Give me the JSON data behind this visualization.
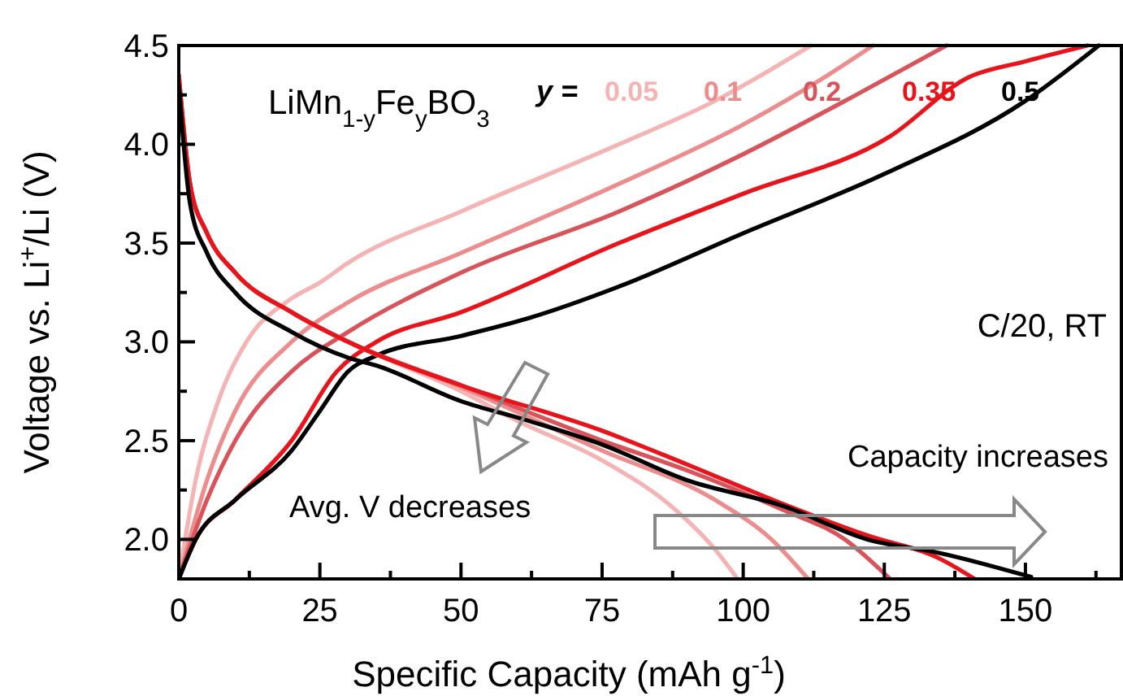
{
  "chart_data": {
    "type": "line",
    "xlabel": "Specific Capacity (mAh g$^{-1}$)",
    "ylabel": "Voltage vs. Li$^{+}$/Li (V)",
    "legend_title": "y =",
    "legend": "top",
    "grid": false,
    "line_style": "solid",
    "xlim": [
      0,
      167
    ],
    "ylim": [
      1.8,
      4.5
    ],
    "xticks": [
      0,
      {
        "value": 12.5,
        "label": null
      },
      25,
      {
        "value": 37.5,
        "label": null
      },
      50,
      {
        "value": 62.5,
        "label": null
      },
      75,
      {
        "value": 87.5,
        "label": null
      },
      100,
      {
        "value": 112.5,
        "label": null
      },
      125,
      {
        "value": 137.5,
        "label": null
      },
      150,
      {
        "value": 162.5,
        "label": null
      }
    ],
    "yticks": [
      {
        "value": 2.0,
        "label": "2.0"
      },
      {
        "value": 2.25,
        "label": null
      },
      {
        "value": 2.5,
        "label": "2.5"
      },
      {
        "value": 2.75,
        "label": null
      },
      {
        "value": 3.0,
        "label": "3.0"
      },
      {
        "value": 3.25,
        "label": null
      },
      {
        "value": 3.5,
        "label": "3.5"
      },
      {
        "value": 3.75,
        "label": null
      },
      {
        "value": 4.0,
        "label": "4.0"
      },
      {
        "value": 4.25,
        "label": null
      },
      {
        "value": 4.5,
        "label": "4.5"
      }
    ],
    "series": [
      {
        "name": "0.05",
        "color": "#f4b4b4",
        "x": [
          0,
          3,
          7,
          12,
          20,
          25,
          30,
          50,
          78,
          95,
          105,
          112
        ],
        "values": [
          1.8,
          2.3,
          2.7,
          3.0,
          3.22,
          3.3,
          3.4,
          3.66,
          4.0,
          4.22,
          4.38,
          4.5
        ]
      },
      {
        "name": "0.1",
        "color": "#ec8c8c",
        "x": [
          0,
          5,
          10,
          20,
          30,
          50,
          78,
          100,
          115,
          123
        ],
        "values": [
          1.8,
          2.3,
          2.65,
          3.0,
          3.2,
          3.45,
          3.8,
          4.1,
          4.35,
          4.5
        ]
      },
      {
        "name": "0.2",
        "color": "#d9535a",
        "x": [
          0,
          5,
          10,
          20,
          30,
          50,
          78,
          100,
          120,
          136
        ],
        "values": [
          1.8,
          2.2,
          2.5,
          2.85,
          3.05,
          3.35,
          3.66,
          3.95,
          4.25,
          4.5
        ]
      },
      {
        "name": "0.35",
        "color": "#e8141b",
        "x": [
          0,
          3,
          10,
          20,
          28,
          35,
          50,
          78,
          100,
          126,
          140,
          150,
          161
        ],
        "values": [
          1.8,
          2.0,
          2.2,
          2.5,
          2.85,
          3.0,
          3.15,
          3.5,
          3.75,
          4.04,
          4.34,
          4.42,
          4.5
        ]
      },
      {
        "name": "0.5",
        "color": "#000000",
        "x": [
          0,
          3,
          10,
          20,
          25,
          30,
          35,
          50,
          62,
          78,
          100,
          125,
          150,
          163
        ],
        "values": [
          1.8,
          2.0,
          2.2,
          2.45,
          2.65,
          2.85,
          2.93,
          3.03,
          3.12,
          3.28,
          3.55,
          3.85,
          4.22,
          4.5
        ]
      },
      {
        "color": "#f4b4b4",
        "x": [
          0,
          2,
          5,
          10,
          20,
          30,
          50,
          60,
          75,
          88,
          95,
          99
        ],
        "values": [
          4.35,
          3.8,
          3.55,
          3.35,
          3.15,
          3.0,
          2.75,
          2.6,
          2.4,
          2.15,
          1.95,
          1.8
        ]
      },
      {
        "color": "#ec8c8c",
        "x": [
          0,
          2,
          5,
          10,
          20,
          30,
          50,
          75,
          95,
          105,
          111.5
        ],
        "values": [
          4.35,
          3.8,
          3.55,
          3.35,
          3.15,
          3.0,
          2.77,
          2.45,
          2.2,
          2.0,
          1.8
        ]
      },
      {
        "color": "#d9535a",
        "x": [
          0,
          2,
          5,
          10,
          20,
          30,
          50,
          75,
          90,
          107,
          118,
          126
        ],
        "values": [
          4.35,
          3.8,
          3.55,
          3.35,
          3.15,
          3.0,
          2.78,
          2.5,
          2.35,
          2.15,
          2.0,
          1.8
        ]
      },
      {
        "color": "#e8141b",
        "x": [
          0,
          2,
          5,
          10,
          20,
          30,
          50,
          75,
          90,
          107,
          122,
          135,
          141
        ],
        "values": [
          4.35,
          3.8,
          3.55,
          3.35,
          3.15,
          3.0,
          2.78,
          2.55,
          2.38,
          2.18,
          2.02,
          1.9,
          1.8
        ]
      },
      {
        "color": "#000000",
        "x": [
          0,
          2,
          5,
          10,
          20,
          30,
          35,
          50,
          62,
          75,
          90,
          107,
          122,
          135,
          151
        ],
        "values": [
          4.3,
          3.7,
          3.45,
          3.25,
          3.05,
          2.92,
          2.88,
          2.7,
          2.6,
          2.48,
          2.3,
          2.17,
          2.0,
          1.93,
          1.81
        ]
      }
    ],
    "annotations": [
      "LiMn$_{1-y}$Fe$_{y}$BO$_{3}$",
      "C/20, RT",
      "Avg. V decreases",
      "Capacity increases"
    ]
  }
}
